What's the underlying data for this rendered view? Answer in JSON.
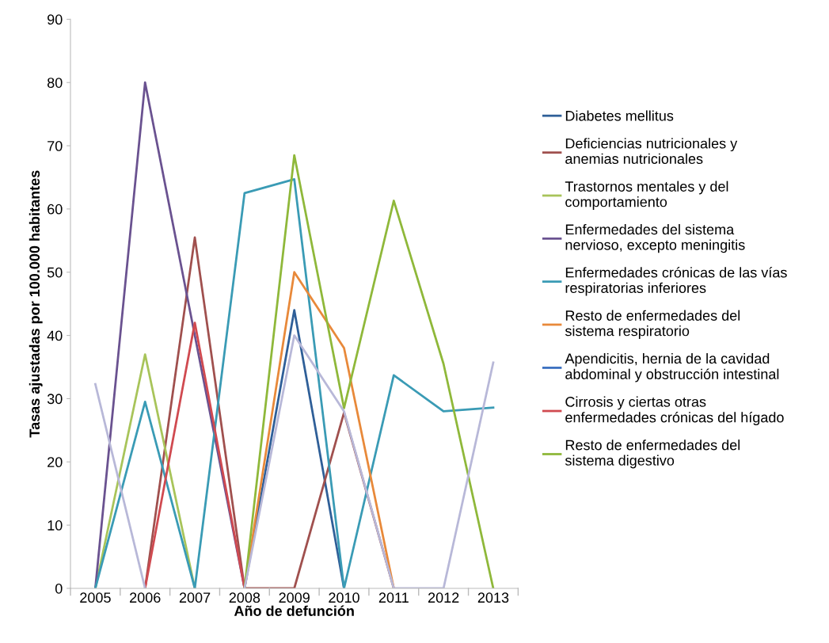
{
  "chart_data": {
    "type": "line",
    "xlabel": "Año de defunción",
    "ylabel": "Tasas ajustadas por 100.000 habitantes",
    "categories": [
      "2005",
      "2006",
      "2007",
      "2008",
      "2009",
      "2010",
      "2011",
      "2012",
      "2013"
    ],
    "ylim": [
      0,
      90
    ],
    "yticks": [
      0,
      10,
      20,
      30,
      40,
      50,
      60,
      70,
      80,
      90
    ],
    "grid": false,
    "legend": "right",
    "marker": "none",
    "series": [
      {
        "name": "Diabetes mellitus",
        "color": "#2f5f98",
        "values": [
          null,
          null,
          null,
          0,
          44,
          0,
          null,
          null,
          null
        ]
      },
      {
        "name": "Deficiencias nutricionales y\nanemias nutricionales",
        "color": "#a0504e",
        "values": [
          null,
          0,
          55.5,
          0,
          0,
          27.8,
          0,
          null,
          null
        ]
      },
      {
        "name": "Trastornos mentales y del\ncomportamiento",
        "color": "#a8c45a",
        "values": [
          0,
          37,
          0,
          null,
          null,
          null,
          null,
          null,
          null
        ]
      },
      {
        "name": "Enfermedades del sistema\nnervioso, excepto meningitis",
        "color": "#6a5290",
        "values": [
          0,
          80,
          40,
          0,
          null,
          null,
          null,
          null,
          null
        ]
      },
      {
        "name": "Enfermedades crónicas de las vías\nrespiratorias inferiores",
        "color": "#3a9bb5",
        "values": [
          0,
          29.5,
          0,
          62.5,
          64.7,
          0,
          33.7,
          28,
          28.6
        ]
      },
      {
        "name": "Resto de enfermedades del\nsistema respiratorio",
        "color": "#e8893a",
        "values": [
          null,
          null,
          null,
          0,
          50,
          38,
          0,
          null,
          null
        ]
      },
      {
        "name": "Apendicitis, hernia de la cavidad\nabdominal y obstrucción intestinal",
        "color": "#3a6fc0",
        "values": [
          null,
          null,
          null,
          null,
          null,
          null,
          null,
          null,
          null
        ]
      },
      {
        "name": "Cirrosis y ciertas otras\nenfermedades crónicas del hígado",
        "color": "#d04a50",
        "values": [
          null,
          0,
          42,
          0,
          null,
          null,
          null,
          null,
          null
        ]
      },
      {
        "name": "Resto de enfermedades del\nsistema digestivo",
        "color": "#8fb83a",
        "values": [
          null,
          null,
          null,
          0,
          68.5,
          28.5,
          61.3,
          35.5,
          0
        ]
      },
      {
        "color": "#b8b8d8",
        "values": [
          32.3,
          0,
          null,
          0,
          40,
          28,
          0,
          0,
          35.7
        ]
      }
    ]
  }
}
